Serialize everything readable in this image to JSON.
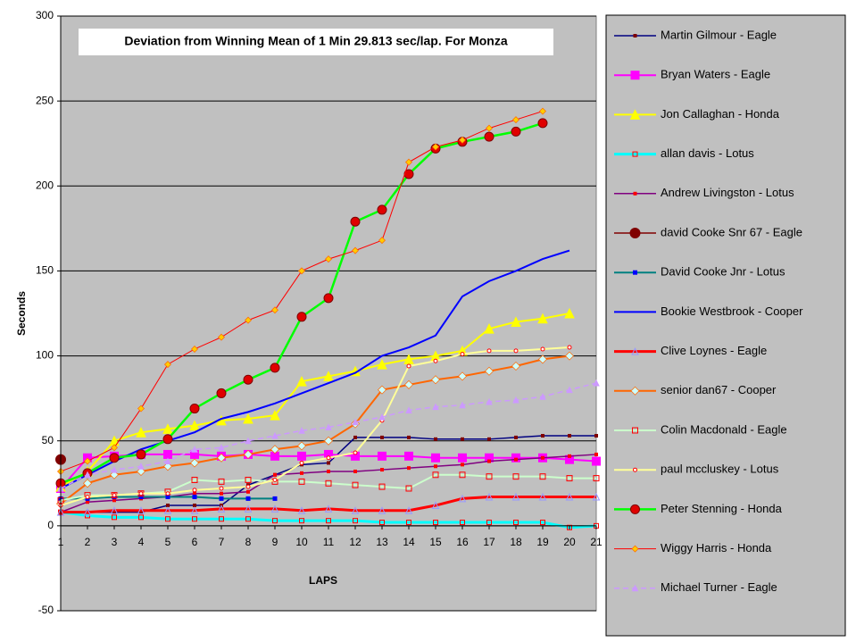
{
  "chart_data": {
    "type": "line",
    "title": "Deviation from Winning Mean of 1 Min 29.813 sec/lap. For Monza",
    "x_label": "LAPS",
    "y_label": "Seconds",
    "categories": [
      1,
      2,
      3,
      4,
      5,
      6,
      7,
      8,
      9,
      10,
      11,
      12,
      13,
      14,
      15,
      16,
      17,
      18,
      19,
      20,
      21
    ],
    "ylim": [
      -50,
      300
    ],
    "yticks": [
      -50,
      0,
      50,
      100,
      150,
      200,
      250,
      300
    ],
    "grid": true,
    "legend": "right",
    "series": [
      {
        "name": "Martin Gilmour - Eagle",
        "color": "#000080",
        "width": 1.5,
        "marker": "square",
        "marker_color": "#800000",
        "marker_size": 3,
        "values": [
          8,
          8,
          8,
          8,
          12,
          12,
          12,
          24,
          30,
          36,
          37,
          52,
          52,
          52,
          51,
          51,
          51,
          52,
          53,
          53,
          53
        ]
      },
      {
        "name": "Bryan Waters - Eagle",
        "color": "#ff00ff",
        "width": 2,
        "marker": "square",
        "marker_color": "#ff00ff",
        "marker_size": 9,
        "values": [
          22,
          40,
          41,
          42,
          42,
          42,
          41,
          42,
          41,
          41,
          42,
          41,
          41,
          41,
          40,
          40,
          40,
          40,
          40,
          39,
          38
        ]
      },
      {
        "name": "Jon Callaghan - Honda",
        "color": "#ffff00",
        "width": 2,
        "marker": "triangle",
        "marker_color": "#ffff00",
        "marker_size": 10,
        "values": [
          23,
          32,
          50,
          55,
          57,
          59,
          62,
          63,
          65,
          85,
          88,
          91,
          95,
          98,
          100,
          103,
          116,
          120,
          122,
          125,
          null
        ]
      },
      {
        "name": "allan davis - Lotus",
        "color": "#00ffff",
        "width": 3,
        "marker": "square-open",
        "marker_color": "#ff0000",
        "marker_size": 5,
        "values": [
          8,
          6,
          5,
          5,
          4,
          4,
          4,
          4,
          3,
          3,
          3,
          3,
          2,
          2,
          2,
          2,
          2,
          2,
          2,
          -1,
          0
        ]
      },
      {
        "name": "Andrew Livingston - Lotus",
        "color": "#800080",
        "width": 1.5,
        "marker": "square",
        "marker_color": "#ff0000",
        "marker_size": 3,
        "values": [
          8,
          14,
          15,
          16,
          17,
          19,
          19,
          20,
          30,
          31,
          32,
          32,
          33,
          34,
          35,
          36,
          38,
          39,
          40,
          41,
          42
        ]
      },
      {
        "name": "david Cooke Snr 67 - Eagle",
        "color": "#800000",
        "width": 1.5,
        "marker": "circle",
        "marker_color": "#800000",
        "marker_size": 11,
        "values": [
          39,
          null,
          null,
          null,
          null,
          null,
          null,
          null,
          null,
          null,
          null,
          null,
          null,
          null,
          null,
          null,
          null,
          null,
          null,
          null,
          null
        ]
      },
      {
        "name": "David Cooke Jnr - Lotus",
        "color": "#008080",
        "width": 2,
        "marker": "square",
        "marker_color": "#0000ff",
        "marker_size": 4,
        "values": [
          16,
          16,
          17,
          17,
          17,
          17,
          16,
          16,
          16,
          null,
          null,
          null,
          null,
          null,
          null,
          null,
          null,
          null,
          null,
          null,
          null
        ]
      },
      {
        "name": "Bookie Westbrook - Cooper",
        "color": "#0000ff",
        "width": 2,
        "marker": "none",
        "marker_color": "#0000ff",
        "marker_size": 0,
        "values": [
          22,
          30,
          38,
          45,
          50,
          55,
          63,
          67,
          72,
          78,
          84,
          90,
          100,
          105,
          112,
          135,
          144,
          150,
          157,
          162,
          null
        ]
      },
      {
        "name": "Clive Loynes - Eagle",
        "color": "#ff0000",
        "width": 3,
        "marker": "triangle-open",
        "marker_color": "#9999ff",
        "marker_size": 7,
        "values": [
          8,
          8,
          9,
          9,
          9,
          9,
          10,
          10,
          10,
          9,
          10,
          9,
          9,
          9,
          12,
          16,
          17,
          17,
          17,
          17,
          17
        ]
      },
      {
        "name": "senior dan67 - Cooper",
        "color": "#ff6600",
        "width": 2,
        "marker": "diamond",
        "marker_color": "#ccffff",
        "marker_size": 9,
        "values": [
          13,
          25,
          30,
          32,
          35,
          37,
          40,
          42,
          45,
          47,
          50,
          60,
          80,
          83,
          86,
          88,
          91,
          94,
          98,
          100,
          null
        ]
      },
      {
        "name": "Colin Macdonald - Eagle",
        "color": "#ccffcc",
        "width": 2,
        "marker": "square-open",
        "marker_color": "#ff0000",
        "marker_size": 6,
        "values": [
          15,
          18,
          18,
          19,
          20,
          27,
          26,
          27,
          26,
          26,
          25,
          24,
          23,
          22,
          30,
          30,
          29,
          29,
          29,
          28,
          28
        ]
      },
      {
        "name": "paul mccluskey - Lotus",
        "color": "#ffff99",
        "width": 2,
        "marker": "circle-open",
        "marker_color": "#ff0000",
        "marker_size": 4,
        "values": [
          12,
          17,
          18,
          19,
          19,
          21,
          22,
          23,
          27,
          37,
          40,
          43,
          62,
          94,
          97,
          101,
          103,
          103,
          104,
          105,
          null
        ]
      },
      {
        "name": "Peter Stenning - Honda",
        "color": "#00ff00",
        "width": 2.5,
        "marker": "circle",
        "marker_color": "#e00000",
        "marker_size": 10,
        "values": [
          25,
          31,
          40,
          42,
          51,
          69,
          78,
          86,
          93,
          123,
          134,
          179,
          186,
          207,
          222,
          226,
          229,
          232,
          237,
          null,
          null
        ]
      },
      {
        "name": "Wiggy Harris - Honda",
        "color": "#ff0000",
        "width": 1,
        "marker": "diamond",
        "marker_color": "#ffcc00",
        "marker_size": 7,
        "values": [
          32,
          38,
          46,
          69,
          95,
          104,
          111,
          121,
          127,
          150,
          157,
          162,
          168,
          214,
          223,
          227,
          234,
          239,
          244,
          null,
          null
        ]
      },
      {
        "name": "Michael Turner - Eagle",
        "color": "#cc99ff",
        "width": 1.5,
        "dash": true,
        "marker": "triangle",
        "marker_color": "#cc99ff",
        "marker_size": 6,
        "values": [
          22,
          30,
          33,
          35,
          38,
          45,
          46,
          50,
          53,
          56,
          58,
          61,
          64,
          68,
          70,
          71,
          73,
          74,
          76,
          80,
          84
        ]
      }
    ]
  }
}
